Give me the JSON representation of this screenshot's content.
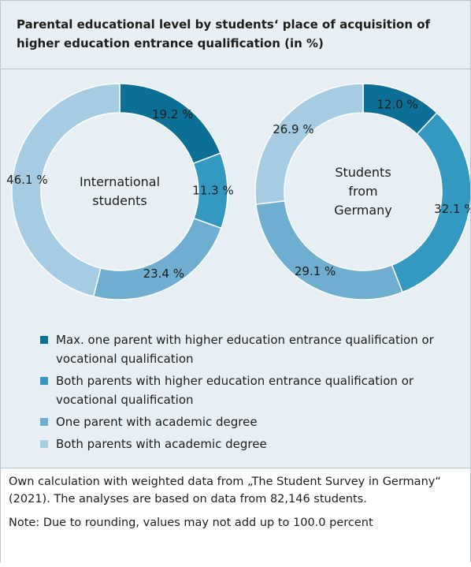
{
  "chart_data": {
    "type": "donut",
    "title": "Parental educational level by students‘ place of acquisition of higher education entrance qualification (in %)",
    "categories": [
      "Max. one parent with higher education entrance qualification or vocational qualification",
      "Both parents with higher education entrance qualification or vocational qualification",
      "One parent with academic degree",
      "Both parents with academic degree"
    ],
    "colors": [
      "#0b6f96",
      "#3399c0",
      "#6faed0",
      "#a5cce2"
    ],
    "series": [
      {
        "name": "International students",
        "values": [
          19.2,
          11.3,
          23.4,
          46.1
        ],
        "value_labels": [
          "19.2 %",
          "11.3 %",
          "23.4 %",
          "46.1 %"
        ]
      },
      {
        "name": "Students from Germany",
        "values": [
          12.0,
          32.1,
          29.1,
          26.9
        ],
        "value_labels": [
          "12.0 %",
          "32.1 %",
          "29.1 %",
          "26.9 %"
        ]
      }
    ],
    "notes": [
      "Own calculation with weighted data from „The Student Survey in Germany“ (2021). The analyses are based on data from 82,146 students.",
      "Note: Due to rounding, values may not add up to 100.0 percent"
    ]
  }
}
